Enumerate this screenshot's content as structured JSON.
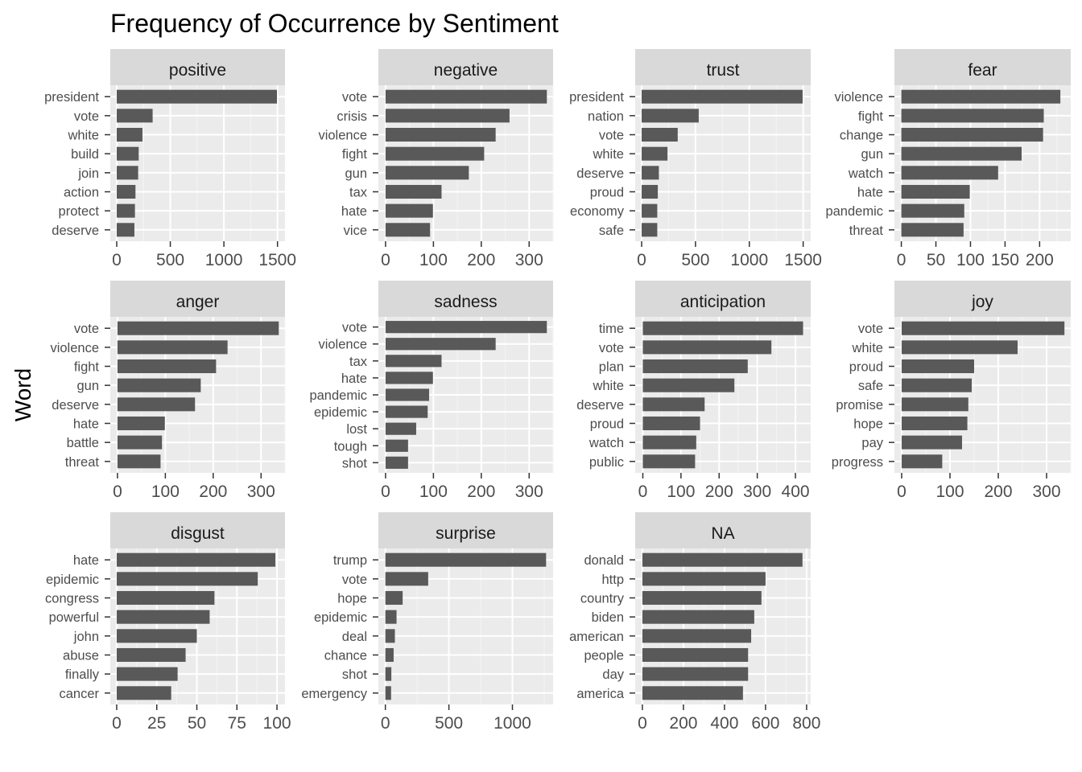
{
  "chart_data": {
    "type": "bar",
    "orientation": "horizontal",
    "title": "Frequency of Occurrence by Sentiment",
    "ylabel": "Word",
    "xlabel": "",
    "grid": true,
    "colors": {
      "bar": "#595959",
      "panel_background": "#ebebeb",
      "strip_background": "#d9d9d9",
      "grid_major": "#ffffff",
      "grid_minor": "#f5f5f5",
      "label_text": "#4d4d4d"
    },
    "facets": [
      {
        "name": "positive",
        "xlim": [
          -60,
          1570
        ],
        "ticks": [
          0,
          500,
          1000,
          1500
        ],
        "categories": [
          "president",
          "vote",
          "white",
          "build",
          "join",
          "action",
          "protect",
          "deserve"
        ],
        "values": [
          1495,
          335,
          240,
          205,
          200,
          175,
          170,
          165
        ]
      },
      {
        "name": "negative",
        "xlim": [
          -15,
          350
        ],
        "ticks": [
          0,
          100,
          200,
          300
        ],
        "categories": [
          "vote",
          "crisis",
          "violence",
          "fight",
          "gun",
          "tax",
          "hate",
          "vice"
        ],
        "values": [
          337,
          259,
          230,
          206,
          174,
          117,
          99,
          93
        ]
      },
      {
        "name": "trust",
        "xlim": [
          -60,
          1570
        ],
        "ticks": [
          0,
          500,
          1000,
          1500
        ],
        "categories": [
          "president",
          "nation",
          "vote",
          "white",
          "deserve",
          "proud",
          "economy",
          "safe"
        ],
        "values": [
          1495,
          530,
          335,
          240,
          160,
          150,
          145,
          145
        ]
      },
      {
        "name": "fear",
        "xlim": [
          -10,
          245
        ],
        "ticks": [
          0,
          50,
          100,
          150,
          200
        ],
        "categories": [
          "violence",
          "fight",
          "change",
          "gun",
          "watch",
          "hate",
          "pandemic",
          "threat"
        ],
        "values": [
          230,
          206,
          205,
          174,
          140,
          99,
          91,
          90
        ]
      },
      {
        "name": "anger",
        "xlim": [
          -15,
          350
        ],
        "ticks": [
          0,
          100,
          200,
          300
        ],
        "categories": [
          "vote",
          "violence",
          "fight",
          "gun",
          "deserve",
          "hate",
          "battle",
          "threat"
        ],
        "values": [
          337,
          230,
          206,
          174,
          162,
          99,
          93,
          90
        ]
      },
      {
        "name": "sadness",
        "xlim": [
          -15,
          350
        ],
        "ticks": [
          0,
          100,
          200,
          300
        ],
        "categories": [
          "vote",
          "violence",
          "tax",
          "hate",
          "pandemic",
          "epidemic",
          "lost",
          "tough",
          "shot"
        ],
        "values": [
          337,
          230,
          117,
          99,
          91,
          88,
          64,
          47,
          47
        ]
      },
      {
        "name": "anticipation",
        "xlim": [
          -20,
          440
        ],
        "ticks": [
          0,
          100,
          200,
          300,
          400
        ],
        "categories": [
          "time",
          "vote",
          "plan",
          "white",
          "deserve",
          "proud",
          "watch",
          "public"
        ],
        "values": [
          420,
          337,
          275,
          240,
          162,
          150,
          140,
          137
        ]
      },
      {
        "name": "joy",
        "xlim": [
          -15,
          350
        ],
        "ticks": [
          0,
          100,
          200,
          300
        ],
        "categories": [
          "vote",
          "white",
          "proud",
          "safe",
          "promise",
          "hope",
          "pay",
          "progress"
        ],
        "values": [
          337,
          240,
          150,
          145,
          138,
          136,
          125,
          84
        ]
      },
      {
        "name": "disgust",
        "xlim": [
          -4,
          105
        ],
        "ticks": [
          0,
          25,
          50,
          75,
          100
        ],
        "categories": [
          "hate",
          "epidemic",
          "congress",
          "powerful",
          "john",
          "abuse",
          "finally",
          "cancer"
        ],
        "values": [
          99,
          88,
          61,
          58,
          50,
          43,
          38,
          34
        ]
      },
      {
        "name": "surprise",
        "xlim": [
          -55,
          1320
        ],
        "ticks": [
          0,
          500,
          1000
        ],
        "categories": [
          "trump",
          "vote",
          "hope",
          "epidemic",
          "deal",
          "chance",
          "shot",
          "emergency"
        ],
        "values": [
          1265,
          337,
          136,
          88,
          75,
          65,
          47,
          45
        ]
      },
      {
        "name": "NA",
        "xlim": [
          -35,
          820
        ],
        "ticks": [
          0,
          200,
          400,
          600,
          800
        ],
        "categories": [
          "donald",
          "http",
          "country",
          "biden",
          "american",
          "people",
          "day",
          "america"
        ],
        "values": [
          780,
          600,
          580,
          545,
          530,
          515,
          515,
          490
        ]
      }
    ]
  }
}
